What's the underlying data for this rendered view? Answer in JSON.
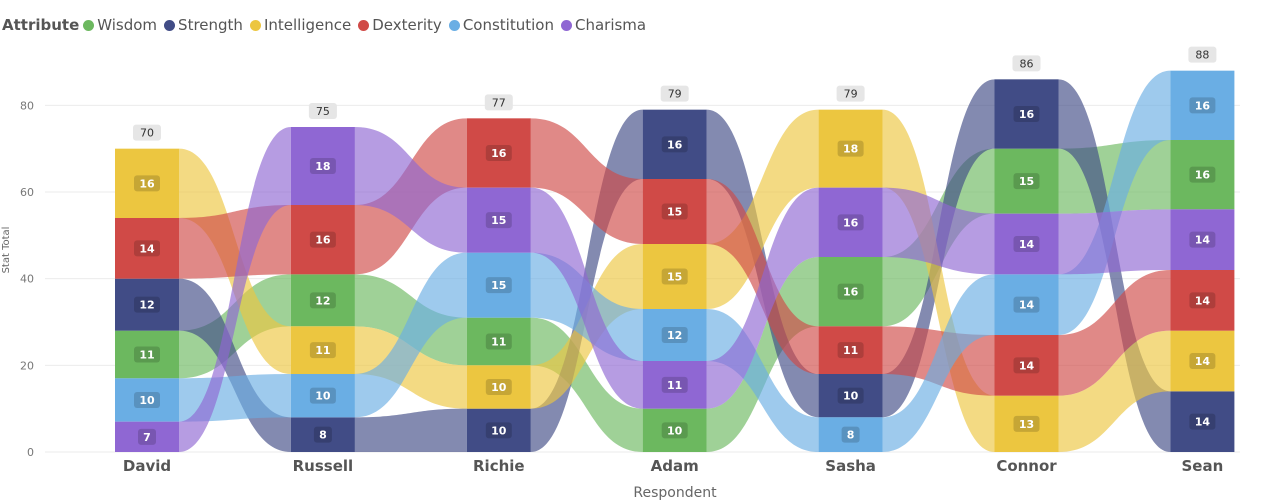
{
  "legend_title": "Attribute",
  "chart_data": {
    "type": "bar",
    "subtype": "ribbon",
    "categories": [
      "David",
      "Russell",
      "Richie",
      "Adam",
      "Sasha",
      "Connor",
      "Sean"
    ],
    "xlabel": "Respondent",
    "ylabel": "Stat Total",
    "ylim": [
      0,
      90
    ],
    "yticks": [
      0,
      20,
      40,
      60,
      80
    ],
    "grid": true,
    "legend_position": "top-left",
    "totals": [
      70,
      75,
      77,
      79,
      79,
      86,
      88
    ],
    "series": [
      {
        "name": "Wisdom",
        "color": "#6cb85f",
        "values": [
          11,
          12,
          11,
          10,
          16,
          15,
          16
        ]
      },
      {
        "name": "Strength",
        "color": "#414c86",
        "values": [
          12,
          8,
          10,
          16,
          10,
          16,
          14
        ]
      },
      {
        "name": "Intelligence",
        "color": "#ecc640",
        "values": [
          16,
          11,
          10,
          15,
          18,
          13,
          14
        ]
      },
      {
        "name": "Dexterity",
        "color": "#d04a47",
        "values": [
          14,
          16,
          16,
          15,
          11,
          14,
          14
        ]
      },
      {
        "name": "Constitution",
        "color": "#6aaee4",
        "values": [
          10,
          10,
          15,
          12,
          8,
          14,
          16
        ]
      },
      {
        "name": "Charisma",
        "color": "#8f67d3",
        "values": [
          7,
          18,
          15,
          11,
          16,
          14,
          14
        ]
      }
    ]
  }
}
